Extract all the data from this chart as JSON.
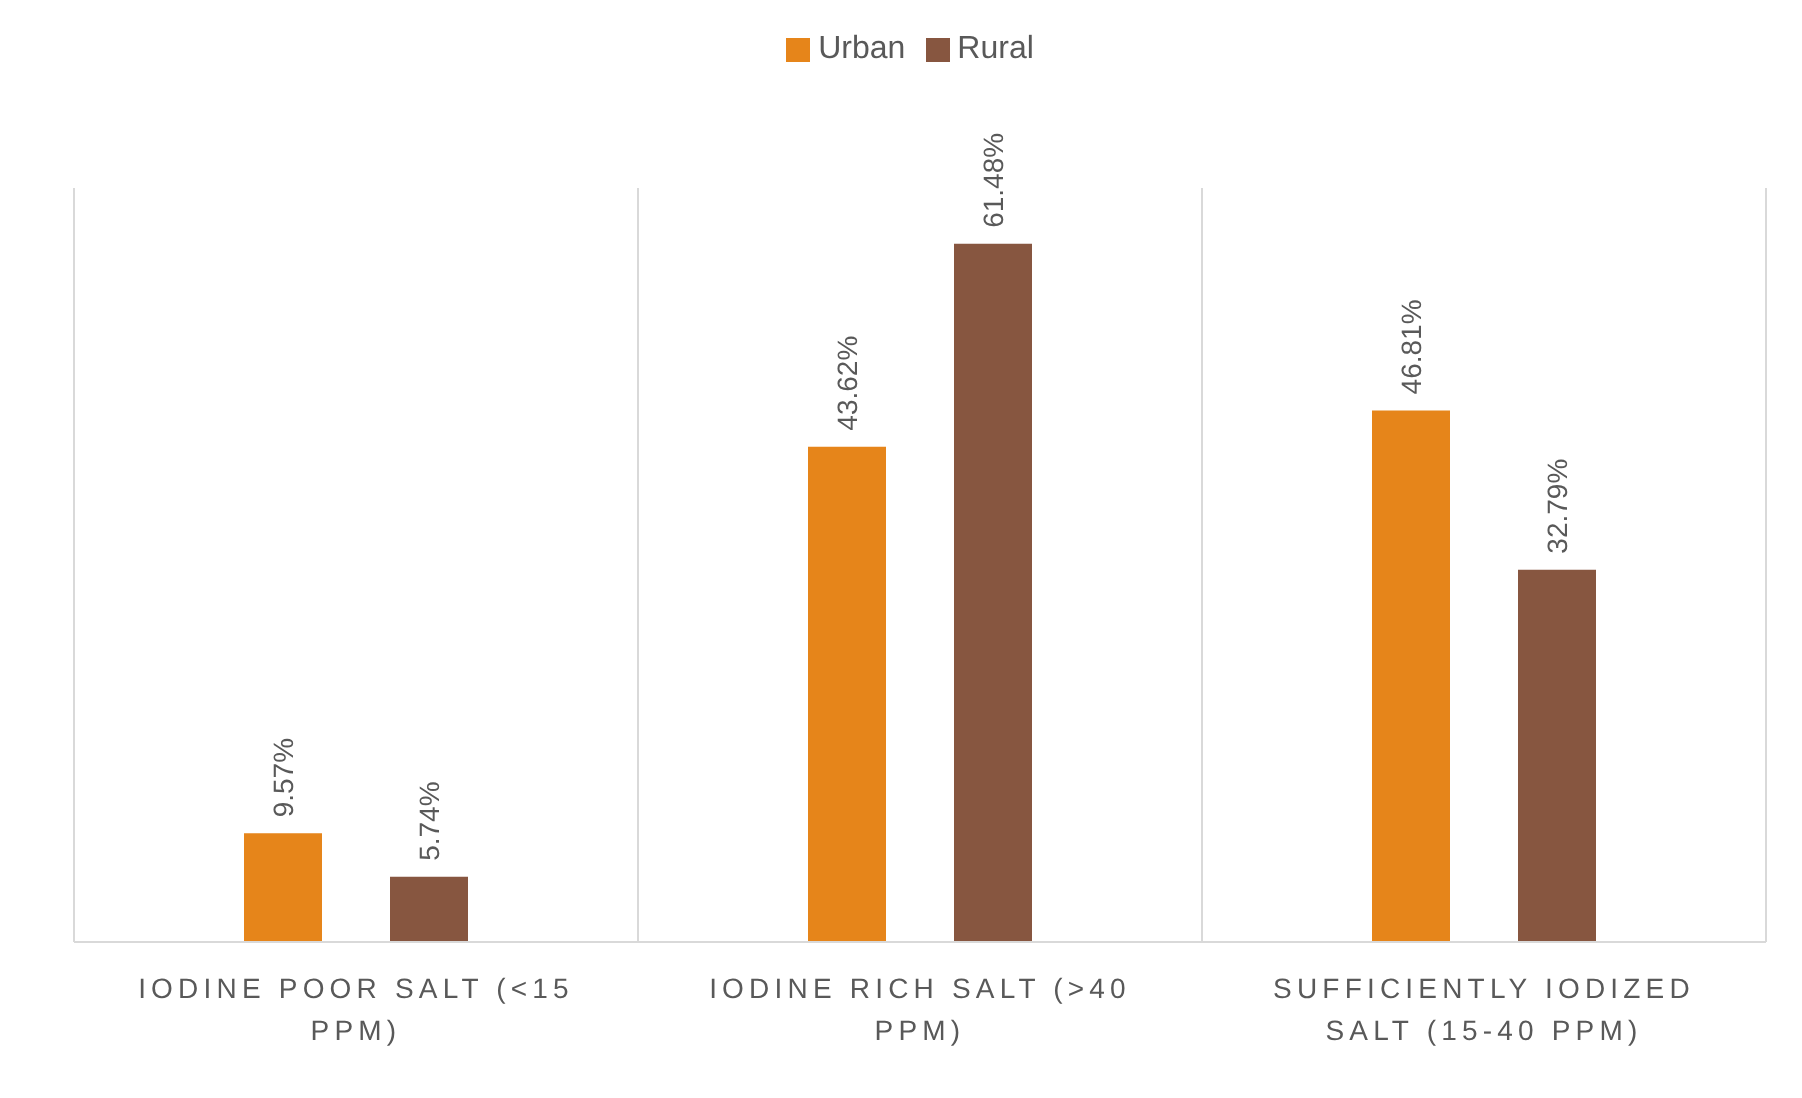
{
  "chart_data": {
    "type": "bar",
    "categories": [
      "IODINE POOR SALT (<15 PPM)",
      "IODINE RICH SALT (>40 PPM)",
      "SUFFICIENTLY IODIZED SALT (15-40 PPM)"
    ],
    "series": [
      {
        "name": "Urban",
        "color": "#e6851a",
        "values": [
          9.57,
          43.62,
          46.81
        ],
        "value_labels": [
          "9.57%",
          "43.62%",
          "46.81%"
        ]
      },
      {
        "name": "Rural",
        "color": "#875640",
        "values": [
          5.74,
          61.48,
          32.79
        ],
        "value_labels": [
          "5.74%",
          "61.48%",
          "32.79%"
        ]
      }
    ],
    "grid": "x",
    "legend": "top"
  }
}
